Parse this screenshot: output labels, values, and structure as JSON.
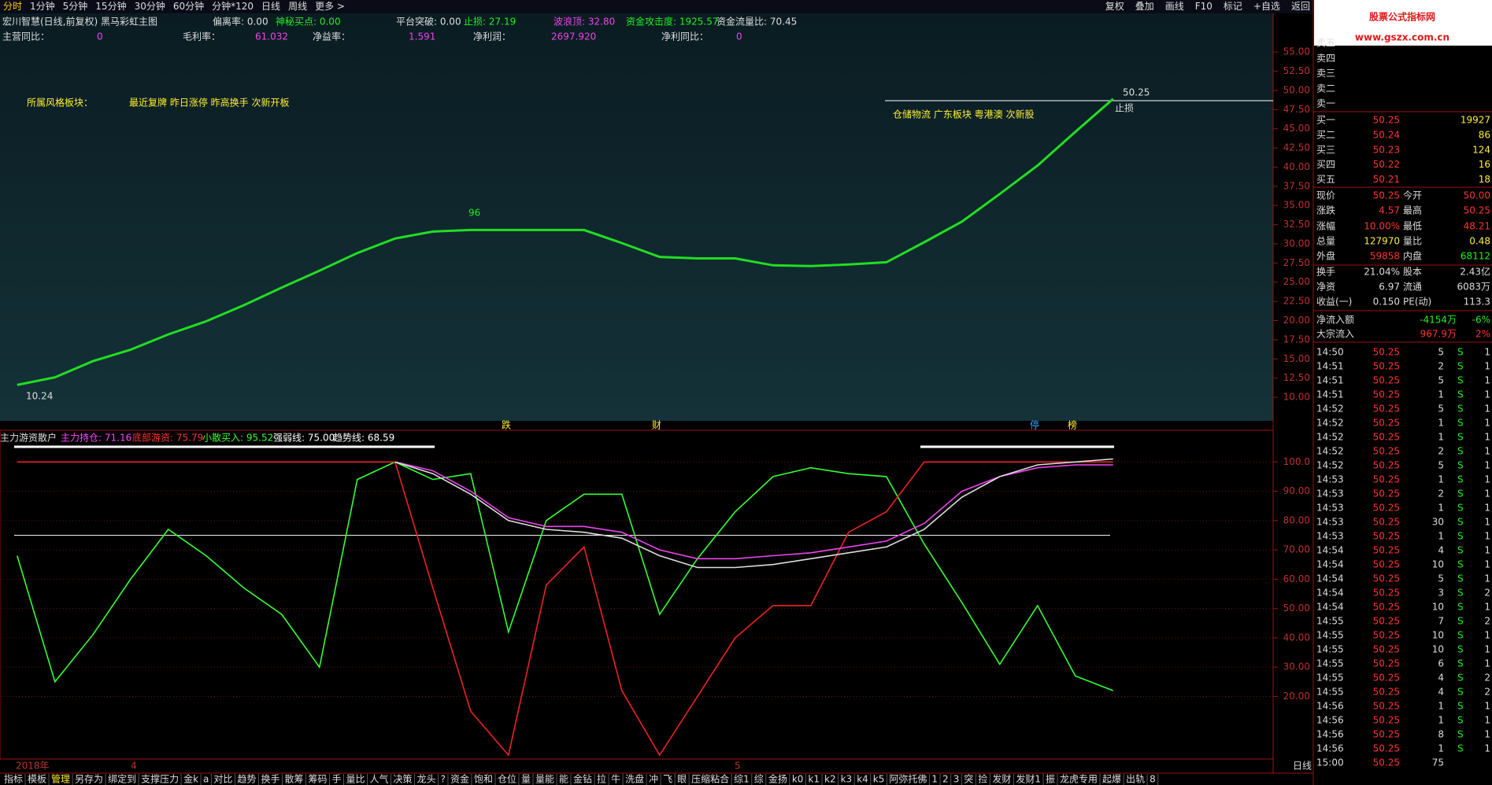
{
  "menu": {
    "tabs": [
      "分时",
      "1分钟",
      "5分钟",
      "15分钟",
      "30分钟",
      "60分钟",
      "分钟*120",
      "日线",
      "周线",
      "更多 >"
    ],
    "buttons": [
      "复权",
      "叠加",
      "画线",
      "F10",
      "标记",
      "+自选",
      "返回"
    ]
  },
  "header": {
    "title": "宏川智慧(日线,前复权) 黑马彩虹主图",
    "row1": [
      "偏离率: 0.00",
      "神秘买点: 0.00",
      "平台突破: 0.00",
      "止损: 27.19",
      "波浪顶: 32.80",
      "资金攻击度: 1925.57",
      "资金流量比: 70.45"
    ],
    "row2": [
      {
        "label": "主营同比：",
        "value": "0"
      },
      {
        "label": "毛利率：",
        "value": "61.032"
      },
      {
        "label": "净益率：",
        "value": "1.591"
      },
      {
        "label": "净利润：",
        "value": "2697.920"
      },
      {
        "label": "净利同比：",
        "value": "0"
      }
    ]
  },
  "annotations": {
    "style_label": "所属风格板块：",
    "style_tags": "最近复牌 昨日涨停 昨高换手 次新开板",
    "sector_tags": "仓储物流 广东板块 粤港澳 次新股",
    "low_price": "10.24",
    "high_price": "50.25",
    "stop": "止损",
    "mark_96": "96",
    "strip": [
      "跌",
      "财",
      "停",
      "榜"
    ]
  },
  "price_chart": {
    "type": "line",
    "ylim": [
      7,
      60
    ],
    "yticks": [
      {
        "value": 10,
        "label": "10.00"
      },
      {
        "value": 12.5,
        "label": "12.50"
      },
      {
        "value": 15,
        "label": "15.00"
      },
      {
        "value": 17.5,
        "label": "17.50"
      },
      {
        "value": 20,
        "label": "20.00"
      },
      {
        "value": 22.5,
        "label": "22.50"
      },
      {
        "value": 25,
        "label": "25.00"
      },
      {
        "value": 27.5,
        "label": "27.50"
      },
      {
        "value": 30,
        "label": "30.00"
      },
      {
        "value": 32.5,
        "label": "32.50"
      },
      {
        "value": 35,
        "label": "35.00"
      },
      {
        "value": 37.5,
        "label": "37.50"
      },
      {
        "value": 40,
        "label": "40.00"
      },
      {
        "value": 42.5,
        "label": "42.50"
      },
      {
        "value": 45,
        "label": "45.00"
      },
      {
        "value": 47.5,
        "label": "47.50"
      },
      {
        "value": 50,
        "label": "50.00"
      },
      {
        "value": 52.5,
        "label": "52.50"
      },
      {
        "value": 55,
        "label": "55.00"
      }
    ],
    "series": [
      {
        "color": "#22dd22",
        "values": [
          11.6,
          12.6,
          14.7,
          16.2,
          18.2,
          19.9,
          22.0,
          24.3,
          26.5,
          28.8,
          30.7,
          31.6,
          31.8,
          31.8,
          31.8,
          31.8,
          30.1,
          28.3,
          28.1,
          28.1,
          27.2,
          27.1,
          27.3,
          27.6,
          30.2,
          32.9,
          36.5,
          40.2,
          44.6,
          48.9
        ]
      }
    ]
  },
  "indicator_chart": {
    "type": "line",
    "title": "主力游资散户",
    "legend": [
      {
        "text": "主力持仓: 71.16",
        "color": "#ff44ff"
      },
      {
        "text": "底部游资: 75.79",
        "color": "#ff3333"
      },
      {
        "text": "小散买入: 95.52",
        "color": "#33ff33"
      },
      {
        "text": "强弱线: 75.00",
        "color": "#ffffff"
      },
      {
        "text": "趋势线: 68.59",
        "color": "#ffffff"
      }
    ],
    "ylim": [
      0,
      110
    ],
    "yticks": [
      {
        "value": 20,
        "label": "20.00"
      },
      {
        "value": 30,
        "label": "30.00"
      },
      {
        "value": 40,
        "label": "40.00"
      },
      {
        "value": 50,
        "label": "50.00"
      },
      {
        "value": 60,
        "label": "60.00"
      },
      {
        "value": 70,
        "label": "70.00"
      },
      {
        "value": 80,
        "label": "80.00"
      },
      {
        "value": 90,
        "label": "90.00"
      },
      {
        "value": 100,
        "label": "100.0"
      }
    ],
    "reference_line": 75,
    "series": [
      {
        "color": "#33ff33",
        "values": [
          68,
          25,
          41,
          60,
          77,
          68,
          57,
          48,
          30,
          94,
          100,
          94,
          96,
          42,
          80,
          89,
          89,
          48,
          67,
          83,
          95,
          98,
          96,
          95,
          72,
          52,
          31,
          51,
          27,
          22
        ]
      },
      {
        "color": "#ee2222",
        "values": [
          100,
          100,
          100,
          100,
          100,
          100,
          100,
          100,
          100,
          100,
          100,
          57,
          15,
          0,
          58,
          71,
          22,
          0,
          20,
          40,
          51,
          51,
          76,
          83,
          100,
          100,
          100,
          100,
          100,
          100
        ]
      },
      {
        "color": "#ee44ee",
        "values": [
          null,
          null,
          null,
          null,
          null,
          null,
          null,
          null,
          null,
          null,
          100,
          97,
          90,
          81,
          78,
          78,
          76,
          70,
          67,
          67,
          68,
          69,
          71,
          73,
          79,
          90,
          95,
          98,
          99,
          99
        ]
      },
      {
        "color": "#dddddd",
        "values": [
          null,
          null,
          null,
          null,
          null,
          null,
          null,
          null,
          null,
          null,
          100,
          96,
          89,
          80,
          77,
          76,
          74,
          68,
          64,
          64,
          65,
          67,
          69,
          71,
          77,
          88,
          95,
          99,
          100,
          101
        ]
      }
    ]
  },
  "dates": [
    "2018年",
    "4",
    "5"
  ],
  "period": "日线",
  "logo": {
    "name": "股票公式指标网",
    "url": "www.gszx.com.cn"
  },
  "quotes": {
    "sell": [
      "卖五",
      "卖四",
      "卖三",
      "卖二",
      "卖一"
    ],
    "buy": [
      [
        "买一",
        "50.25",
        "19927"
      ],
      [
        "买二",
        "50.24",
        "86"
      ],
      [
        "买三",
        "50.23",
        "124"
      ],
      [
        "买四",
        "50.22",
        "16"
      ],
      [
        "买五",
        "50.21",
        "18"
      ]
    ],
    "stats": [
      [
        "现价",
        "50.25",
        "今开",
        "50.00"
      ],
      [
        "涨跌",
        "4.57",
        "最高",
        "50.25"
      ],
      [
        "涨幅",
        "10.00%",
        "最低",
        "48.21"
      ],
      [
        "总量",
        "127970",
        "量比",
        "0.48"
      ],
      [
        "外盘",
        "59858",
        "内盘",
        "68112"
      ],
      [
        "换手",
        "21.04%",
        "股本",
        "2.43亿"
      ],
      [
        "净资",
        "6.97",
        "流通",
        "6083万"
      ],
      [
        "收益(一)",
        "0.150",
        "PE(动)",
        "113.3"
      ],
      [
        "净流入额",
        "-4154万",
        "-6%"
      ],
      [
        "大宗流入",
        "967.9万",
        "2%"
      ]
    ]
  },
  "trades": [
    [
      "14:50",
      "50.25",
      "5",
      "S",
      "1"
    ],
    [
      "14:51",
      "50.25",
      "2",
      "S",
      "1"
    ],
    [
      "14:51",
      "50.25",
      "5",
      "S",
      "1"
    ],
    [
      "14:51",
      "50.25",
      "1",
      "S",
      "1"
    ],
    [
      "14:52",
      "50.25",
      "5",
      "S",
      "1"
    ],
    [
      "14:52",
      "50.25",
      "1",
      "S",
      "1"
    ],
    [
      "14:52",
      "50.25",
      "1",
      "S",
      "1"
    ],
    [
      "14:52",
      "50.25",
      "2",
      "S",
      "1"
    ],
    [
      "14:52",
      "50.25",
      "5",
      "S",
      "1"
    ],
    [
      "14:53",
      "50.25",
      "1",
      "S",
      "1"
    ],
    [
      "14:53",
      "50.25",
      "2",
      "S",
      "1"
    ],
    [
      "14:53",
      "50.25",
      "1",
      "S",
      "1"
    ],
    [
      "14:53",
      "50.25",
      "30",
      "S",
      "1"
    ],
    [
      "14:53",
      "50.25",
      "1",
      "S",
      "1"
    ],
    [
      "14:54",
      "50.25",
      "4",
      "S",
      "1"
    ],
    [
      "14:54",
      "50.25",
      "10",
      "S",
      "1"
    ],
    [
      "14:54",
      "50.25",
      "5",
      "S",
      "1"
    ],
    [
      "14:54",
      "50.25",
      "3",
      "S",
      "2"
    ],
    [
      "14:54",
      "50.25",
      "10",
      "S",
      "1"
    ],
    [
      "14:55",
      "50.25",
      "7",
      "S",
      "2"
    ],
    [
      "14:55",
      "50.25",
      "10",
      "S",
      "1"
    ],
    [
      "14:55",
      "50.25",
      "10",
      "S",
      "1"
    ],
    [
      "14:55",
      "50.25",
      "6",
      "S",
      "1"
    ],
    [
      "14:55",
      "50.25",
      "4",
      "S",
      "2"
    ],
    [
      "14:55",
      "50.25",
      "4",
      "S",
      "2"
    ],
    [
      "14:56",
      "50.25",
      "1",
      "S",
      "1"
    ],
    [
      "14:56",
      "50.25",
      "1",
      "S",
      "1"
    ],
    [
      "14:56",
      "50.25",
      "8",
      "S",
      "1"
    ],
    [
      "14:56",
      "50.25",
      "1",
      "S",
      "1"
    ],
    [
      "15:00",
      "50.25",
      "75"
    ]
  ],
  "bottom_tabs": [
    "指标",
    "模板",
    "管理",
    "另存为",
    "绑定到",
    "支撑压力",
    "金k",
    "a",
    "对比",
    "趋势",
    "换手",
    "散筹",
    "筹码",
    "手",
    "量比",
    "人气",
    "决策",
    "龙头",
    "?",
    "资金",
    "饱和",
    "仓位",
    "量",
    "量能",
    "能",
    "金钻",
    "拉",
    "牛",
    "洗盘",
    "冲",
    "飞",
    "眼",
    "压缩粘合",
    "综1",
    "综",
    "金扬",
    "k0",
    "k1",
    "k2",
    "k3",
    "k4",
    "k5",
    "阿弥托佛",
    "1",
    "2",
    "3",
    "突",
    "捡",
    "发财",
    "发财1",
    "振",
    "龙虎专用",
    "起爆",
    "出轨",
    "8"
  ]
}
